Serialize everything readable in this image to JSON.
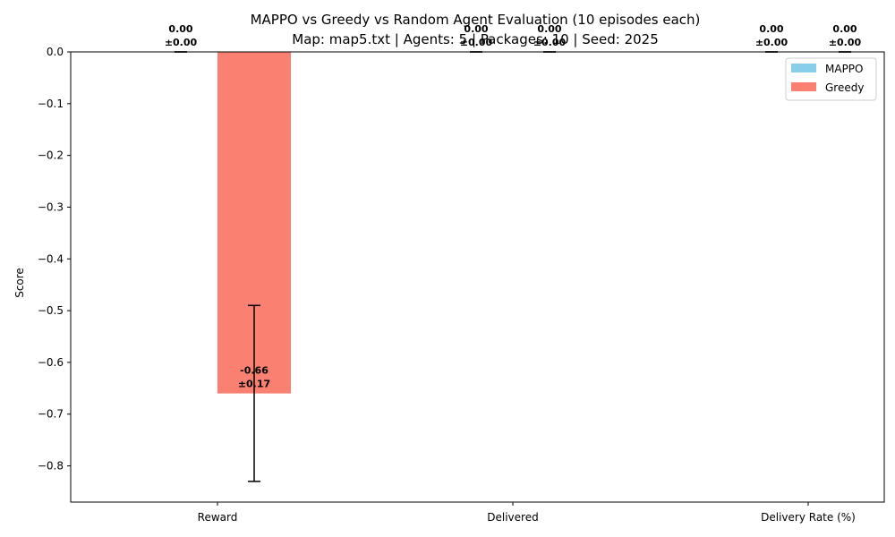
{
  "chart_data": {
    "type": "bar",
    "title_line1": "MAPPO vs Greedy vs Random Agent Evaluation (10 episodes each)",
    "title_line2": "Map: map5.txt | Agents: 5 | Packages: 10 | Seed: 2025",
    "xlabel": "",
    "ylabel": "Score",
    "categories": [
      "Reward",
      "Delivered",
      "Delivery Rate (%)"
    ],
    "ylim": [
      -0.87,
      0.0
    ],
    "yticks": [
      0.0,
      -0.1,
      -0.2,
      -0.3,
      -0.4,
      -0.5,
      -0.6,
      -0.7,
      -0.8
    ],
    "ytick_labels": [
      "0.0",
      "−0.1",
      "−0.2",
      "−0.3",
      "−0.4",
      "−0.5",
      "−0.6",
      "−0.7",
      "−0.8"
    ],
    "legend_position": "top-right",
    "series": [
      {
        "name": "MAPPO",
        "color": "#87CEEB",
        "values": [
          0.0,
          0.0,
          0.0
        ],
        "errors": [
          0.0,
          0.0,
          0.0
        ],
        "labels": [
          [
            "0.00",
            "±0.00"
          ],
          [
            "0.00",
            "±0.00"
          ],
          [
            "0.00",
            "±0.00"
          ]
        ]
      },
      {
        "name": "Greedy",
        "color": "#FA8072",
        "values": [
          -0.66,
          0.0,
          0.0
        ],
        "errors": [
          0.17,
          0.0,
          0.0
        ],
        "labels": [
          [
            "-0.66",
            "±0.17"
          ],
          [
            "0.00",
            "±0.00"
          ],
          [
            "0.00",
            "±0.00"
          ]
        ]
      }
    ]
  }
}
